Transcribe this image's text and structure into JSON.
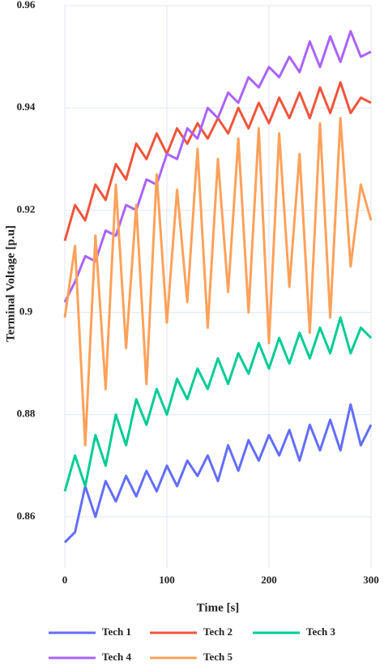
{
  "chart_data": {
    "type": "line",
    "x_label": "Time [s]",
    "y_label": "Terminal Voltage [p.u]",
    "x": [
      0,
      10,
      20,
      30,
      40,
      50,
      60,
      70,
      80,
      90,
      100,
      110,
      120,
      130,
      140,
      150,
      160,
      170,
      180,
      190,
      200,
      210,
      220,
      230,
      240,
      250,
      260,
      270,
      280,
      290,
      300
    ],
    "series": [
      {
        "name": "Tech 1",
        "color": "#636efa",
        "values": [
          0.855,
          0.857,
          0.866,
          0.86,
          0.867,
          0.863,
          0.868,
          0.864,
          0.869,
          0.865,
          0.87,
          0.866,
          0.871,
          0.868,
          0.872,
          0.867,
          0.874,
          0.869,
          0.875,
          0.871,
          0.876,
          0.872,
          0.877,
          0.871,
          0.878,
          0.873,
          0.879,
          0.873,
          0.882,
          0.874,
          0.878
        ]
      },
      {
        "name": "Tech 2",
        "color": "#ef553b",
        "values": [
          0.914,
          0.921,
          0.918,
          0.925,
          0.922,
          0.929,
          0.926,
          0.933,
          0.93,
          0.935,
          0.931,
          0.936,
          0.933,
          0.937,
          0.934,
          0.938,
          0.935,
          0.94,
          0.936,
          0.941,
          0.937,
          0.942,
          0.938,
          0.943,
          0.938,
          0.944,
          0.939,
          0.945,
          0.939,
          0.942,
          0.941
        ]
      },
      {
        "name": "Tech 3",
        "color": "#00cc96",
        "values": [
          0.865,
          0.872,
          0.866,
          0.876,
          0.87,
          0.88,
          0.874,
          0.883,
          0.878,
          0.885,
          0.88,
          0.887,
          0.883,
          0.889,
          0.885,
          0.891,
          0.886,
          0.892,
          0.888,
          0.894,
          0.889,
          0.895,
          0.89,
          0.896,
          0.891,
          0.897,
          0.892,
          0.899,
          0.892,
          0.897,
          0.895
        ]
      },
      {
        "name": "Tech 4",
        "color": "#ab63fa",
        "values": [
          0.902,
          0.906,
          0.911,
          0.91,
          0.916,
          0.915,
          0.921,
          0.92,
          0.926,
          0.925,
          0.931,
          0.93,
          0.936,
          0.934,
          0.94,
          0.938,
          0.943,
          0.941,
          0.946,
          0.944,
          0.948,
          0.946,
          0.95,
          0.947,
          0.953,
          0.948,
          0.954,
          0.949,
          0.955,
          0.95,
          0.951
        ]
      },
      {
        "name": "Tech 5",
        "color": "#ffa15a",
        "values": [
          0.899,
          0.913,
          0.874,
          0.915,
          0.885,
          0.925,
          0.893,
          0.921,
          0.886,
          0.927,
          0.898,
          0.924,
          0.902,
          0.932,
          0.897,
          0.93,
          0.904,
          0.934,
          0.9,
          0.936,
          0.894,
          0.935,
          0.905,
          0.931,
          0.896,
          0.937,
          0.899,
          0.938,
          0.909,
          0.925,
          0.918
        ]
      }
    ],
    "xlim": [
      0,
      300
    ],
    "xticks": [
      0,
      100,
      200,
      300
    ],
    "ylim": [
      0.85,
      0.96
    ],
    "yticks": [
      0.86,
      0.88,
      0.9,
      0.92,
      0.94,
      0.96
    ],
    "grid": true,
    "legend": "bottom"
  }
}
